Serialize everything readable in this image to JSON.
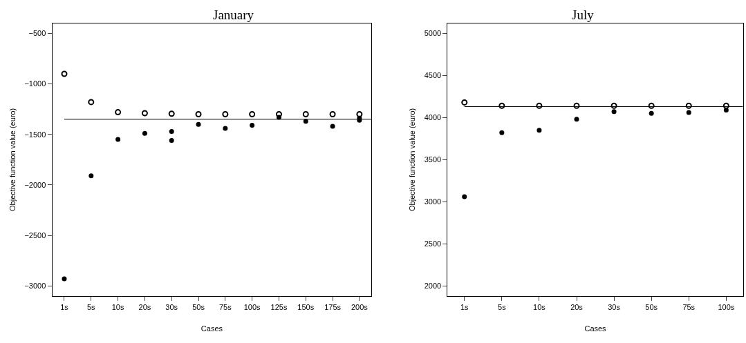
{
  "chart_data": [
    {
      "type": "scatter",
      "title": "January",
      "xlabel": "Cases",
      "ylabel": "Objective function value (euro)",
      "categories": [
        "1s",
        "5s",
        "10s",
        "20s",
        "30s",
        "50s",
        "75s",
        "100s",
        "125s",
        "150s",
        "175s",
        "200s"
      ],
      "series": [
        {
          "color": "#000000",
          "marker": "circle-open",
          "values": [
            -900,
            -1180,
            -1280,
            -1290,
            -1295,
            -1300,
            -1300,
            -1300,
            -1300,
            -1300,
            -1300,
            -1300
          ]
        },
        {
          "color": "#000000",
          "marker": "circle",
          "values": [
            -2930,
            -1910,
            -1550,
            -1490,
            -1470,
            -1400,
            -1440,
            -1410,
            -1330,
            -1370,
            -1420,
            -1340
          ]
        },
        {
          "color": "#000000",
          "marker": "circle",
          "values": [
            null,
            null,
            null,
            null,
            -1560,
            null,
            null,
            null,
            null,
            null,
            null,
            -1360
          ]
        }
      ],
      "ylim": [
        -3100,
        -400
      ],
      "yticks": [
        -3000,
        -2500,
        -2000,
        -1500,
        -1000,
        -500
      ],
      "ref_lines": [
        {
          "axis": "y",
          "value": -1350,
          "color": "#000000"
        }
      ]
    },
    {
      "type": "scatter",
      "title": "July",
      "xlabel": "Cases",
      "ylabel": "Objective function value (euro)",
      "categories": [
        "1s",
        "5s",
        "10s",
        "20s",
        "30s",
        "50s",
        "75s",
        "100s"
      ],
      "series": [
        {
          "color": "#000000",
          "marker": "circle-open",
          "values": [
            4180,
            4140,
            4140,
            4140,
            4140,
            4140,
            4140,
            4140
          ]
        },
        {
          "color": "#000000",
          "marker": "circle",
          "values": [
            3060,
            3820,
            3850,
            3980,
            4070,
            4050,
            4060,
            4090
          ]
        }
      ],
      "ylim": [
        1880,
        5120
      ],
      "yticks": [
        2000,
        2500,
        3000,
        3500,
        4000,
        4500,
        5000
      ],
      "ref_lines": [
        {
          "axis": "y",
          "value": 4130,
          "color": "#000000"
        }
      ]
    }
  ]
}
